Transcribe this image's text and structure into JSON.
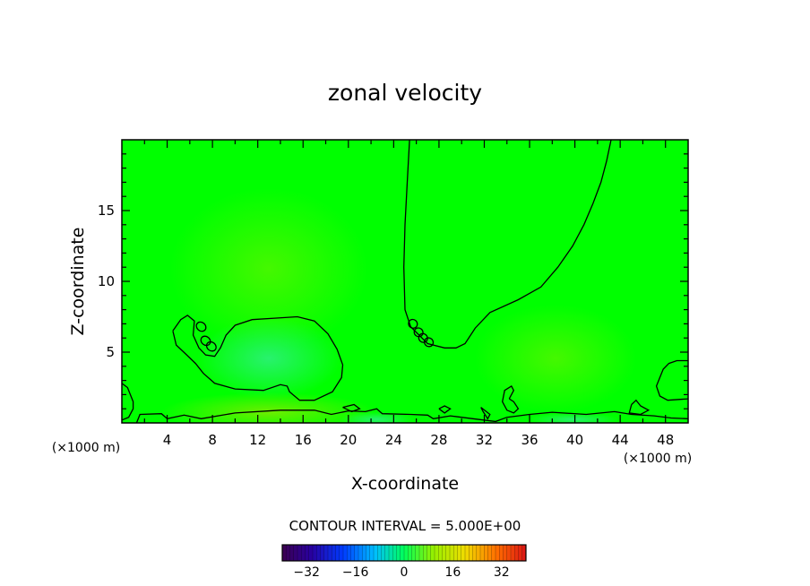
{
  "chart_data": {
    "type": "contour",
    "title": "zonal velocity",
    "xlabel": "X-coordinate",
    "ylabel": "Z-coordinate",
    "x_unit_label": "(×1000 m)",
    "xlim": [
      0,
      50
    ],
    "ylim": [
      0,
      20
    ],
    "x_ticks": [
      "4",
      "8",
      "12",
      "16",
      "20",
      "24",
      "28",
      "32",
      "36",
      "40",
      "44",
      "48"
    ],
    "y_ticks": [
      "5",
      "10",
      "15"
    ],
    "contour_interval_label": "CONTOUR INTERVAL = 5.000E+00",
    "colorbar": {
      "range": [
        -40,
        40
      ],
      "tick_labels": [
        "−32",
        "−16",
        "0",
        "16",
        "32"
      ]
    },
    "contours": [
      {
        "name": "upper-right-contour",
        "points": [
          [
            25.4,
            20
          ],
          [
            25.2,
            17
          ],
          [
            25.0,
            14
          ],
          [
            24.9,
            11
          ],
          [
            25.0,
            8
          ],
          [
            25.5,
            6.8
          ],
          [
            27.0,
            5.6
          ],
          [
            28.5,
            5.3
          ],
          [
            29.5,
            5.3
          ],
          [
            30.3,
            5.6
          ],
          [
            31.2,
            6.7
          ],
          [
            32.5,
            7.8
          ],
          [
            35.0,
            8.7
          ],
          [
            37.0,
            9.6
          ],
          [
            38.5,
            11.0
          ],
          [
            39.8,
            12.5
          ],
          [
            40.8,
            14.0
          ],
          [
            41.6,
            15.5
          ],
          [
            42.3,
            17.0
          ],
          [
            42.8,
            18.5
          ],
          [
            43.2,
            20
          ]
        ]
      },
      {
        "name": "left-lobe-contour",
        "points": [
          [
            4.5,
            6.5
          ],
          [
            5.2,
            7.3
          ],
          [
            5.8,
            7.6
          ],
          [
            6.4,
            7.2
          ],
          [
            6.3,
            6.2
          ],
          [
            6.8,
            5.3
          ],
          [
            7.4,
            4.8
          ],
          [
            8.2,
            4.7
          ],
          [
            8.7,
            5.3
          ],
          [
            9.2,
            6.2
          ],
          [
            10.0,
            6.9
          ],
          [
            11.5,
            7.3
          ],
          [
            13.5,
            7.4
          ],
          [
            15.5,
            7.5
          ],
          [
            17.0,
            7.2
          ],
          [
            18.2,
            6.3
          ],
          [
            19.0,
            5.2
          ],
          [
            19.5,
            4.1
          ],
          [
            19.4,
            3.2
          ],
          [
            18.6,
            2.2
          ],
          [
            17.0,
            1.6
          ],
          [
            15.7,
            1.6
          ],
          [
            14.8,
            2.2
          ],
          [
            14.6,
            2.6
          ],
          [
            14.0,
            2.7
          ],
          [
            12.5,
            2.3
          ],
          [
            10.0,
            2.4
          ],
          [
            8.2,
            2.8
          ],
          [
            7.2,
            3.5
          ],
          [
            6.5,
            4.2
          ],
          [
            5.6,
            4.9
          ],
          [
            4.8,
            5.5
          ],
          [
            4.5,
            6.5
          ]
        ]
      },
      {
        "name": "ground-contour",
        "points": [
          [
            1.3,
            0
          ],
          [
            1.6,
            0.6
          ],
          [
            3.5,
            0.65
          ],
          [
            4.0,
            0.3
          ],
          [
            5.5,
            0.55
          ],
          [
            7.0,
            0.3
          ],
          [
            10.0,
            0.7
          ],
          [
            14.0,
            0.9
          ],
          [
            17.0,
            0.9
          ],
          [
            18.5,
            0.6
          ],
          [
            20.0,
            0.85
          ],
          [
            21.5,
            0.8
          ],
          [
            22.5,
            1.0
          ],
          [
            23.0,
            0.65
          ],
          [
            25.5,
            0.6
          ],
          [
            27.0,
            0.55
          ],
          [
            27.5,
            0.3
          ],
          [
            29.0,
            0.5
          ],
          [
            31.0,
            0.3
          ],
          [
            33.0,
            0.1
          ],
          [
            34.0,
            0.4
          ],
          [
            36.0,
            0.6
          ],
          [
            38.0,
            0.75
          ],
          [
            41.0,
            0.6
          ],
          [
            43.5,
            0.8
          ],
          [
            45.0,
            0.6
          ],
          [
            47.0,
            0.5
          ],
          [
            48.5,
            0.35
          ],
          [
            50,
            0.3
          ]
        ]
      },
      {
        "name": "left-edge-contour",
        "points": [
          [
            0,
            2.8
          ],
          [
            0.5,
            2.5
          ],
          [
            1.0,
            1.5
          ],
          [
            1.0,
            1.0
          ],
          [
            0.6,
            0.4
          ],
          [
            0,
            0.2
          ]
        ]
      },
      {
        "name": "right-edge-contour",
        "points": [
          [
            50,
            4.4
          ],
          [
            49.0,
            4.4
          ],
          [
            48.3,
            4.2
          ],
          [
            47.8,
            3.8
          ],
          [
            47.5,
            3.2
          ],
          [
            47.2,
            2.6
          ],
          [
            47.5,
            1.9
          ],
          [
            48.2,
            1.6
          ],
          [
            50,
            1.7
          ]
        ]
      },
      {
        "name": "cell-contour-1",
        "points": [
          [
            34.2,
            1.7
          ],
          [
            34.6,
            2.3
          ],
          [
            34.4,
            2.6
          ],
          [
            33.8,
            2.3
          ],
          [
            33.6,
            1.5
          ],
          [
            34.0,
            0.9
          ],
          [
            34.6,
            0.7
          ],
          [
            35.0,
            1.0
          ],
          [
            34.6,
            1.5
          ],
          [
            34.2,
            1.7
          ]
        ]
      },
      {
        "name": "cell-contour-2",
        "points": [
          [
            45.0,
            1.3
          ],
          [
            45.4,
            1.6
          ],
          [
            45.8,
            1.2
          ],
          [
            46.5,
            0.9
          ],
          [
            45.8,
            0.6
          ],
          [
            44.8,
            0.7
          ],
          [
            45.0,
            1.3
          ]
        ]
      },
      {
        "name": "cell-contour-3",
        "points": [
          [
            28.0,
            1.0
          ],
          [
            28.5,
            1.2
          ],
          [
            29.0,
            1.0
          ],
          [
            28.5,
            0.7
          ],
          [
            28.0,
            1.0
          ]
        ]
      },
      {
        "name": "cell-contour-4",
        "points": [
          [
            31.7,
            1.1
          ],
          [
            32.5,
            0.6
          ],
          [
            32.3,
            0.3
          ],
          [
            31.9,
            0.8
          ],
          [
            31.7,
            1.1
          ]
        ]
      },
      {
        "name": "cell-contour-5",
        "points": [
          [
            19.5,
            1.1
          ],
          [
            20.5,
            1.3
          ],
          [
            21.0,
            1.0
          ],
          [
            20.3,
            0.8
          ],
          [
            19.5,
            1.1
          ]
        ]
      }
    ],
    "small_closed_contours": [
      {
        "name": "blob-contour-1",
        "cx": 7.0,
        "cy": 6.8,
        "rx": 0.45,
        "ry": 0.3
      },
      {
        "name": "blob-contour-2",
        "cx": 7.4,
        "cy": 5.8,
        "rx": 0.45,
        "ry": 0.3
      },
      {
        "name": "blob-contour-3",
        "cx": 7.9,
        "cy": 5.4,
        "rx": 0.45,
        "ry": 0.3
      },
      {
        "name": "blob-contour-4",
        "cx": 25.7,
        "cy": 7.0,
        "rx": 0.4,
        "ry": 0.3
      },
      {
        "name": "blob-contour-5",
        "cx": 26.2,
        "cy": 6.4,
        "rx": 0.4,
        "ry": 0.3
      },
      {
        "name": "blob-contour-6",
        "cx": 26.6,
        "cy": 6.0,
        "rx": 0.4,
        "ry": 0.3
      },
      {
        "name": "blob-contour-7",
        "cx": 27.1,
        "cy": 5.7,
        "rx": 0.4,
        "ry": 0.3
      }
    ],
    "grid": false,
    "legend": "none"
  },
  "colors": {
    "background_field": "#00ff00",
    "contour_line": "#000000",
    "warm_patch": "#7df200",
    "cool_patch": "#2df07a"
  }
}
